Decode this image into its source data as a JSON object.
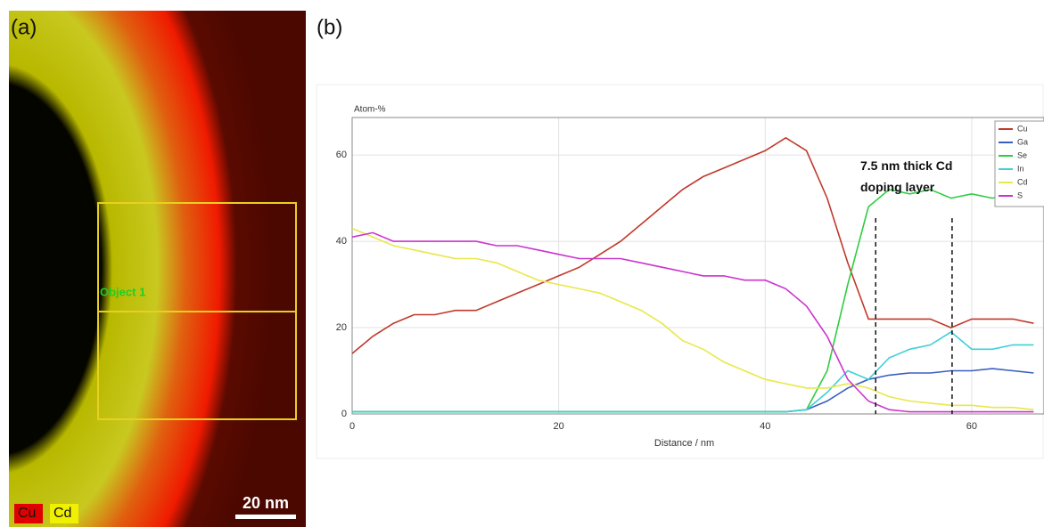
{
  "panel_a": {
    "label": "(a)",
    "object_label": "Object 1",
    "legend": [
      "Cu",
      "Cd"
    ],
    "scale_bar": "20 nm"
  },
  "chart_data": {
    "type": "line",
    "panel_label": "(b)",
    "y_label": "Atom-%",
    "x_label": "Distance / nm",
    "annotation": "7.5 nm thick Cd doping layer",
    "annotation_lines": [
      50.7,
      58.1
    ],
    "xlim": [
      0,
      67
    ],
    "ylim": [
      0,
      68.7
    ],
    "xticks": [
      0,
      20,
      40,
      60
    ],
    "yticks": [
      0,
      20,
      40,
      60
    ],
    "grid": true,
    "legend": "top-right",
    "x": [
      0,
      2,
      4,
      6,
      8,
      10,
      12,
      14,
      16,
      18,
      20,
      22,
      24,
      26,
      28,
      30,
      32,
      34,
      36,
      38,
      40,
      42,
      44,
      46,
      48,
      50,
      52,
      54,
      56,
      58,
      60,
      62,
      64,
      66
    ],
    "series": [
      {
        "name": "Cu",
        "color": "#c0392b",
        "values": [
          14,
          18,
          21,
          23,
          23,
          24,
          24,
          26,
          28,
          30,
          32,
          34,
          37,
          40,
          44,
          48,
          52,
          55,
          57,
          59,
          61,
          64,
          61,
          50,
          35,
          22,
          22,
          22,
          22,
          20,
          22,
          22,
          22,
          21
        ]
      },
      {
        "name": "Ga",
        "color": "#3b5fc0",
        "values": [
          0.5,
          0.5,
          0.5,
          0.5,
          0.5,
          0.5,
          0.5,
          0.5,
          0.5,
          0.5,
          0.5,
          0.5,
          0.5,
          0.5,
          0.5,
          0.5,
          0.5,
          0.5,
          0.5,
          0.5,
          0.5,
          0.5,
          1,
          3,
          6,
          8,
          9,
          9.5,
          9.5,
          10,
          10,
          10.5,
          10,
          9.5
        ]
      },
      {
        "name": "Se",
        "color": "#2ecc40",
        "values": [
          0.5,
          0.5,
          0.5,
          0.5,
          0.5,
          0.5,
          0.5,
          0.5,
          0.5,
          0.5,
          0.5,
          0.5,
          0.5,
          0.5,
          0.5,
          0.5,
          0.5,
          0.5,
          0.5,
          0.5,
          0.5,
          0.5,
          1,
          10,
          30,
          48,
          52,
          51,
          52,
          50,
          51,
          50,
          51,
          50
        ]
      },
      {
        "name": "In",
        "color": "#3fd0d8",
        "values": [
          0.5,
          0.5,
          0.5,
          0.5,
          0.5,
          0.5,
          0.5,
          0.5,
          0.5,
          0.5,
          0.5,
          0.5,
          0.5,
          0.5,
          0.5,
          0.5,
          0.5,
          0.5,
          0.5,
          0.5,
          0.5,
          0.5,
          1,
          5,
          10,
          8,
          13,
          15,
          16,
          19,
          15,
          15,
          16,
          16
        ]
      },
      {
        "name": "Cd",
        "color": "#e8e84a",
        "values": [
          43,
          41,
          39,
          38,
          37,
          36,
          36,
          35,
          33,
          31,
          30,
          29,
          28,
          26,
          24,
          21,
          17,
          15,
          12,
          10,
          8,
          7,
          6,
          6,
          7,
          6,
          4,
          3,
          2.5,
          2,
          2,
          1.5,
          1.5,
          1
        ]
      },
      {
        "name": "S",
        "color": "#cc33cc",
        "values": [
          41,
          42,
          40,
          40,
          40,
          40,
          40,
          39,
          39,
          38,
          37,
          36,
          36,
          36,
          35,
          34,
          33,
          32,
          32,
          31,
          31,
          29,
          25,
          18,
          8,
          3,
          1,
          0.5,
          0.5,
          0.5,
          0.5,
          0.5,
          0.5,
          0.5
        ]
      }
    ]
  }
}
